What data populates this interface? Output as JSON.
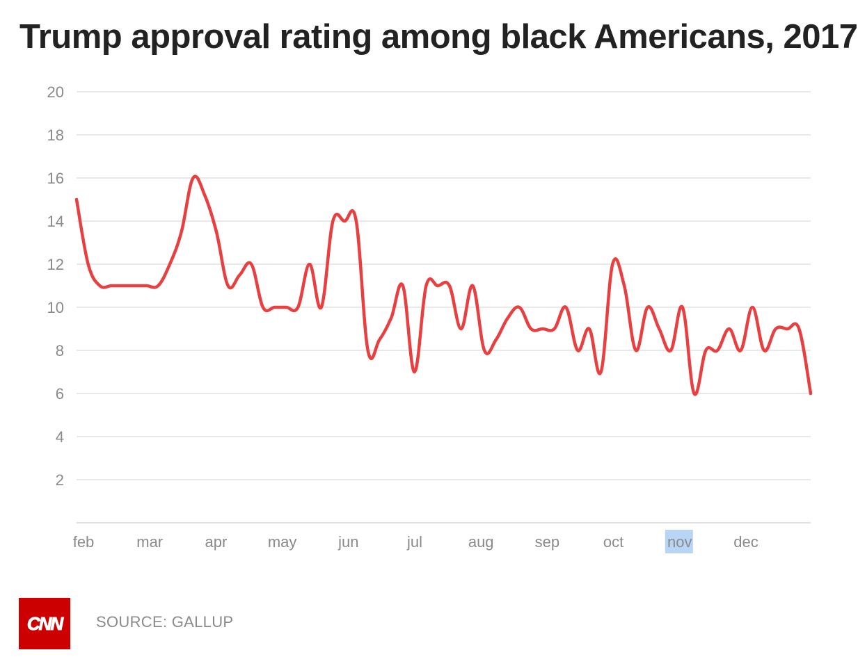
{
  "chart_data": {
    "type": "line",
    "title": "Trump approval rating among black Americans, 2017",
    "xlabel": "",
    "ylabel": "",
    "ylim": [
      0,
      20
    ],
    "yticks": [
      "2",
      "4",
      "6",
      "8",
      "10",
      "12",
      "14",
      "16",
      "18",
      "20"
    ],
    "xticks": [
      "feb",
      "mar",
      "apr",
      "may",
      "jun",
      "jul",
      "aug",
      "sep",
      "oct",
      "nov",
      "dec"
    ],
    "highlighted_xtick": "nov",
    "grid": true,
    "line_color": "#e84040",
    "highlight_color": "#b9d5f5",
    "series": [
      {
        "values": [
          15,
          12,
          11,
          11,
          11,
          11,
          11,
          11,
          12,
          13.5,
          16,
          15.2,
          13.5,
          11,
          11.5,
          12,
          10,
          10,
          10,
          10,
          12,
          10,
          14,
          14,
          14,
          8,
          8.5,
          9.5,
          11,
          7,
          11,
          11,
          11,
          9,
          11,
          8,
          8.5,
          9.5,
          10,
          9,
          9,
          9,
          10,
          8,
          9,
          7,
          12,
          11,
          8,
          10,
          9,
          8,
          10,
          6,
          8,
          8,
          9,
          8,
          10,
          8,
          9,
          9,
          9,
          6
        ]
      }
    ]
  },
  "footer": {
    "logo_text": "CNN",
    "source": "SOURCE: GALLUP"
  }
}
